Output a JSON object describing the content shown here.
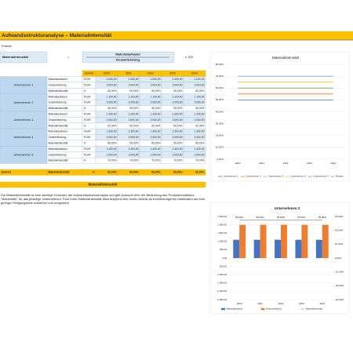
{
  "header": {
    "title": "Aufwandsstrukturanalyse – Materialintensität"
  },
  "formula": {
    "label": "Formel:",
    "lhs": "Materialintensität",
    "eq": "=",
    "numerator": "Materialaufwand",
    "denominator": "Gesamtleistung",
    "factor": "x 100"
  },
  "table": {
    "columns": [
      "Einheit",
      "2020",
      "2021",
      "2022",
      "2023",
      "2024"
    ],
    "groups": [
      {
        "name": "Unternehmen 1",
        "rows": [
          [
            "Materialaufwand",
            "TEUR",
            "1.000,00",
            "1.000,00",
            "1.000,00",
            "1.000,00",
            "1.000,00"
          ],
          [
            "Gesamtleistung",
            "TEUR",
            "2.000,00",
            "2.000,00",
            "2.000,00",
            "2.000,00",
            "2.000,00"
          ],
          [
            "Materialintensität",
            "%",
            "50,00%",
            "50,00%",
            "50,00%",
            "50,00%",
            "50,00%"
          ]
        ]
      },
      {
        "name": "Unternehmen 2",
        "rows": [
          [
            "Materialaufwand",
            "TEUR",
            "1.100,00",
            "1.100,00",
            "1.100,00",
            "1.100,00",
            "1.100,00"
          ],
          [
            "Gesamtleistung",
            "TEUR",
            "2.000,00",
            "2.000,00",
            "2.000,00",
            "2.000,00",
            "2.000,00"
          ],
          [
            "Materialintensität",
            "%",
            "55,00%",
            "55,00%",
            "55,00%",
            "55,00%",
            "55,00%"
          ]
        ]
      },
      {
        "name": "Unternehmen 3",
        "rows": [
          [
            "Materialaufwand",
            "TEUR",
            "1.200,00",
            "1.200,00",
            "1.200,00",
            "1.200,00",
            "1.200,00"
          ],
          [
            "Gesamtleistung",
            "TEUR",
            "2.000,00",
            "2.000,00",
            "2.000,00",
            "2.000,00",
            "2.000,00"
          ],
          [
            "Materialintensität",
            "%",
            "60,00%",
            "60,00%",
            "60,00%",
            "60,00%",
            "60,00%"
          ]
        ]
      },
      {
        "name": "Unternehmen 4",
        "rows": [
          [
            "Materialaufwand",
            "TEUR",
            "1.300,00",
            "1.300,00",
            "1.300,00",
            "1.300,00",
            "1.300,00"
          ],
          [
            "Gesamtleistung",
            "TEUR",
            "2.000,00",
            "2.000,00",
            "2.000,00",
            "2.000,00",
            "2.000,00"
          ],
          [
            "Materialintensität",
            "%",
            "65,00%",
            "65,00%",
            "65,00%",
            "65,00%",
            "65,00%"
          ]
        ]
      },
      {
        "name": "Unternehmen 5",
        "rows": [
          [
            "Materialaufwand",
            "TEUR",
            "1.400,00",
            "1.400,00",
            "1.400,00",
            "1.400,00",
            "1.400,00"
          ],
          [
            "Gesamtleistung",
            "TEUR",
            "2.000,00",
            "2.000,00",
            "2.000,00",
            "2.000,00",
            "2.000,00"
          ],
          [
            "Materialintensität",
            "%",
            "70,00%",
            "70,00%",
            "70,00%",
            "70,00%",
            "70,00%"
          ]
        ]
      }
    ],
    "summary": [
      "Zielwert",
      "Materialintensität",
      "%",
      "60,00%",
      "60,00%",
      "60,00%",
      "60,00%",
      "60,00%"
    ]
  },
  "section": {
    "title": "Materialintensität",
    "text": "Die Materialintensität ist eine wichtige Kennzahl der Aufwandsstrukturanalyse und gibt Auskunft über die Bedeutung des Produktionsfaktors \"Werkstoffe\" für das jeweilige Unternehmen. Eine hohe Materialintensität lässt aufgrund des hohen Anteils an fremdbezogenen Materialien auf eine geringe Fertigungstiefe schließen und umgekehrt."
  },
  "dropdown": "Unternehmen 2",
  "chart_data": [
    {
      "type": "line",
      "title": "Materialintensität",
      "categories": [
        "2020",
        "2021",
        "2022",
        "2023",
        "2024"
      ],
      "series": [
        {
          "name": "Unternehmen 1",
          "color": "#4472c4",
          "values": [
            50,
            50,
            50,
            50,
            50
          ]
        },
        {
          "name": "Unternehmen 2",
          "color": "#ed7d31",
          "values": [
            55,
            55,
            55,
            55,
            55
          ]
        },
        {
          "name": "Unternehmen 3",
          "color": "#a5a5a5",
          "values": [
            60,
            60,
            60,
            60,
            60
          ]
        },
        {
          "name": "Unternehmen 4",
          "color": "#ffc000",
          "values": [
            65,
            65,
            65,
            65,
            65
          ]
        },
        {
          "name": "Unternehmen 5",
          "color": "#5b9bd5",
          "values": [
            70,
            70,
            70,
            70,
            70
          ]
        },
        {
          "name": "Zielwert",
          "color": "#70ad47",
          "values": [
            60,
            60,
            60,
            60,
            60
          ]
        }
      ],
      "ylim": [
        0,
        80
      ],
      "yticks": [
        {
          "value": 0,
          "label": "0,00%"
        },
        {
          "value": 10,
          "label": "10,00%"
        },
        {
          "value": 20,
          "label": "20,00%"
        },
        {
          "value": 30,
          "label": "30,00%"
        },
        {
          "value": 40,
          "label": "40,00%"
        },
        {
          "value": 50,
          "label": "50,00%"
        },
        {
          "value": 60,
          "label": "60,00%"
        },
        {
          "value": 70,
          "label": "70,00%"
        },
        {
          "value": 80,
          "label": "80,00%"
        }
      ],
      "grid": true,
      "legend": "bottom"
    },
    {
      "type": "combo",
      "title": "Unternehmen 2",
      "categories": [
        "2020",
        "2021",
        "2022",
        "2023",
        "2024"
      ],
      "series": [
        {
          "name": "Materialaufwand",
          "color": "#4472c4",
          "values": [
            1100,
            1100,
            1100,
            1100,
            1100
          ]
        },
        {
          "name": "Gesamtleistung",
          "color": "#ed7d31",
          "values": [
            2000,
            2000,
            2000,
            2000,
            2000
          ]
        },
        {
          "name": "Materialintensität",
          "color": "#a5a5a5",
          "axis": "y2",
          "values": [
            55,
            55,
            55,
            55,
            55
          ],
          "value_labels": [
            "55,00%",
            "55,00%",
            "55,00%",
            "55,00%",
            "55,00%"
          ]
        }
      ],
      "ylim": [
        -2500,
        2500
      ],
      "yticks": [
        {
          "value": -2500,
          "label": "-2.500,00"
        },
        {
          "value": -2000,
          "label": "-2.000,00"
        },
        {
          "value": -1500,
          "label": "-1.500,00"
        },
        {
          "value": -1000,
          "label": "-1.000,00"
        },
        {
          "value": -500,
          "label": "-500,00"
        },
        {
          "value": 0,
          "label": "0,00"
        },
        {
          "value": 500,
          "label": "500,00"
        },
        {
          "value": 1000,
          "label": "1.000,00"
        },
        {
          "value": 1500,
          "label": "1.500,00"
        },
        {
          "value": 2000,
          "label": "2.000,00"
        },
        {
          "value": 2500,
          "label": "2.500,00"
        }
      ],
      "y2lim": [
        -60,
        60
      ],
      "y2ticks": [
        {
          "value": -60,
          "label": "-60,00%"
        },
        {
          "value": -40,
          "label": "-40,00%"
        },
        {
          "value": -20,
          "label": "-20,00%"
        },
        {
          "value": 0,
          "label": "0,00%"
        },
        {
          "value": 20,
          "label": "20,00%"
        },
        {
          "value": 40,
          "label": "40,00%"
        },
        {
          "value": 60,
          "label": "60,00%"
        }
      ],
      "grid": true,
      "legend": "bottom"
    }
  ]
}
